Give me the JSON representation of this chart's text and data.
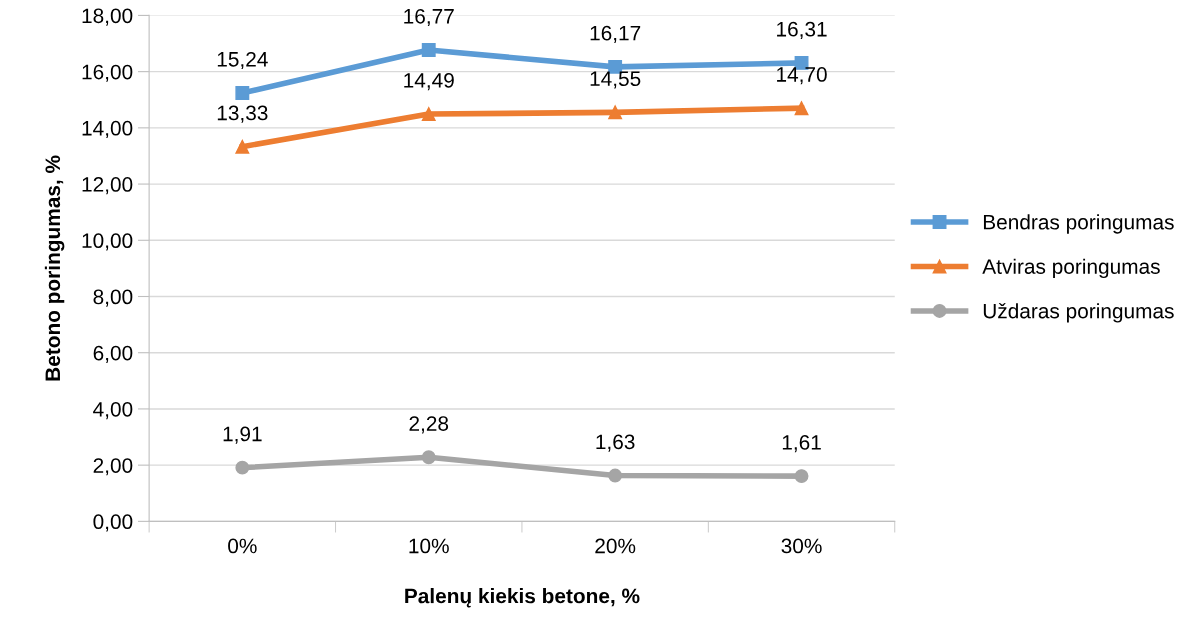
{
  "chart_data": {
    "type": "line",
    "xlabel": "Palenų kiekis betone, %",
    "ylabel": "Betono poringumas, %",
    "categories": [
      "0%",
      "10%",
      "20%",
      "30%"
    ],
    "series": [
      {
        "name": "Bendras poringumas",
        "color": "#5b9bd5",
        "marker": "square",
        "values": [
          15.24,
          16.77,
          16.17,
          16.31
        ],
        "value_labels": [
          "15,24",
          "16,77",
          "16,17",
          "16,31"
        ]
      },
      {
        "name": "Atviras poringumas",
        "color": "#ed7d31",
        "marker": "triangle",
        "values": [
          13.33,
          14.49,
          14.55,
          14.7
        ],
        "value_labels": [
          "13,33",
          "14,49",
          "14,55",
          "14,70"
        ]
      },
      {
        "name": "Uždaras poringumas",
        "color": "#a5a5a5",
        "marker": "circle",
        "values": [
          1.91,
          2.28,
          1.63,
          1.61
        ],
        "value_labels": [
          "1,91",
          "2,28",
          "1,63",
          "1,61"
        ]
      }
    ],
    "ylim": [
      0,
      18
    ],
    "yticks": [
      {
        "value": 0,
        "label": "0,00"
      },
      {
        "value": 2,
        "label": "2,00"
      },
      {
        "value": 4,
        "label": "4,00"
      },
      {
        "value": 6,
        "label": "6,00"
      },
      {
        "value": 8,
        "label": "8,00"
      },
      {
        "value": 10,
        "label": "10,00"
      },
      {
        "value": 12,
        "label": "12,00"
      },
      {
        "value": 14,
        "label": "14,00"
      },
      {
        "value": 16,
        "label": "16,00"
      },
      {
        "value": 18,
        "label": "18,00"
      }
    ],
    "grid": "y",
    "legend": "right",
    "line_style": "solid"
  }
}
